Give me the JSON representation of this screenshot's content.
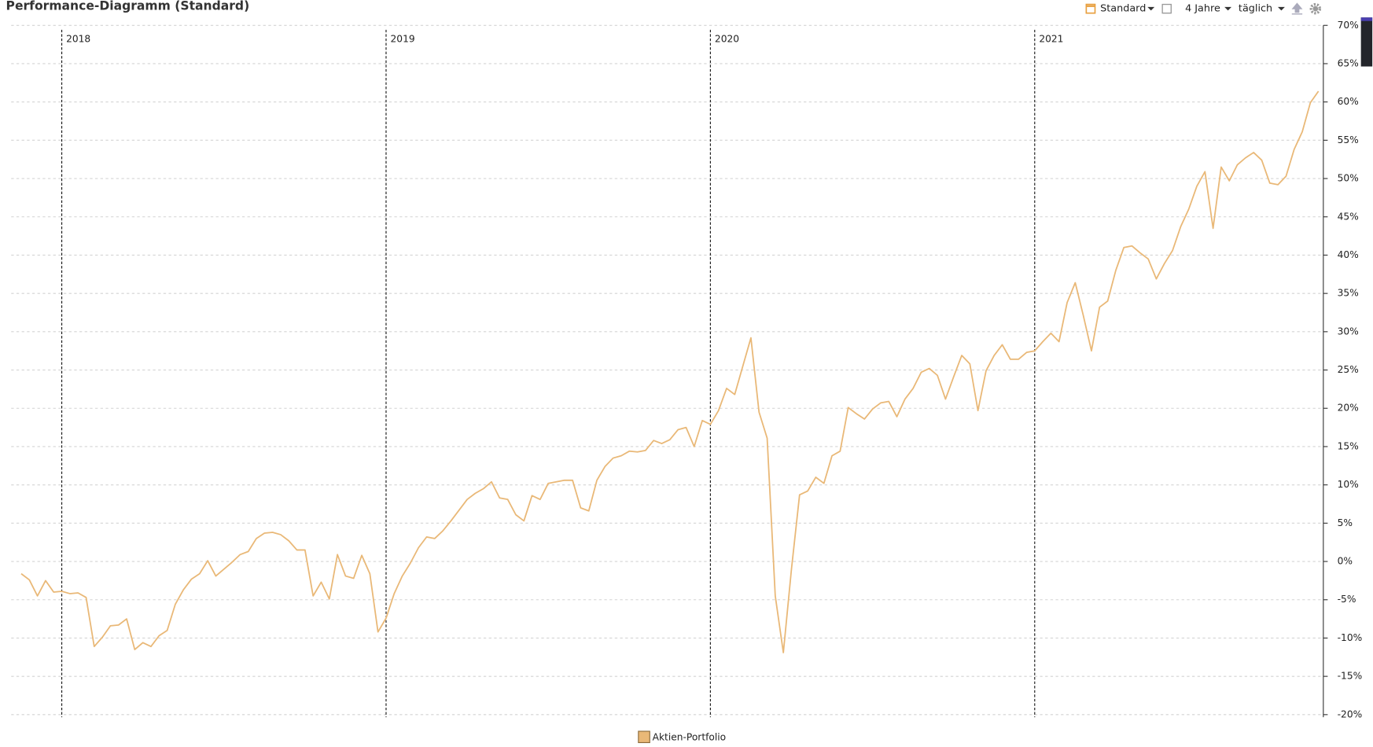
{
  "header": {
    "title": "Performance-Diagramm (Standard)",
    "toolbar": {
      "view": "Standard",
      "range": "4 Jahre",
      "interval": "täglich"
    }
  },
  "chart_data": {
    "type": "line",
    "x": [
      2017.875,
      2017.9,
      2017.925,
      2017.95,
      2017.975,
      2018,
      2018.025,
      2018.05,
      2018.075,
      2018.1,
      2018.125,
      2018.15,
      2018.175,
      2018.2,
      2018.225,
      2018.25,
      2018.275,
      2018.3,
      2018.325,
      2018.35,
      2018.375,
      2018.4,
      2018.425,
      2018.45,
      2018.475,
      2018.5,
      2018.525,
      2018.55,
      2018.575,
      2018.6,
      2018.625,
      2018.65,
      2018.675,
      2018.7,
      2018.725,
      2018.75,
      2018.775,
      2018.8,
      2018.825,
      2018.85,
      2018.875,
      2018.9,
      2018.925,
      2018.95,
      2018.975,
      2019,
      2019.025,
      2019.05,
      2019.075,
      2019.1,
      2019.125,
      2019.15,
      2019.175,
      2019.2,
      2019.225,
      2019.25,
      2019.275,
      2019.3,
      2019.325,
      2019.35,
      2019.375,
      2019.4,
      2019.425,
      2019.45,
      2019.475,
      2019.5,
      2019.525,
      2019.55,
      2019.575,
      2019.6,
      2019.625,
      2019.65,
      2019.675,
      2019.7,
      2019.725,
      2019.75,
      2019.775,
      2019.8,
      2019.825,
      2019.85,
      2019.875,
      2019.9,
      2019.925,
      2019.95,
      2019.975,
      2020,
      2020.025,
      2020.05,
      2020.075,
      2020.1,
      2020.125,
      2020.15,
      2020.175,
      2020.2,
      2020.225,
      2020.25,
      2020.275,
      2020.3,
      2020.325,
      2020.35,
      2020.375,
      2020.4,
      2020.425,
      2020.45,
      2020.475,
      2020.5,
      2020.525,
      2020.55,
      2020.575,
      2020.6,
      2020.625,
      2020.65,
      2020.675,
      2020.7,
      2020.725,
      2020.75,
      2020.775,
      2020.8,
      2020.825,
      2020.85,
      2020.875,
      2020.9,
      2020.925,
      2020.95,
      2020.975,
      2021,
      2021.025,
      2021.05,
      2021.075,
      2021.1,
      2021.125,
      2021.15,
      2021.175,
      2021.2,
      2021.225,
      2021.25,
      2021.275,
      2021.3,
      2021.325,
      2021.35,
      2021.375,
      2021.4,
      2021.425,
      2021.45,
      2021.475,
      2021.5,
      2021.525,
      2021.55,
      2021.575,
      2021.6,
      2021.625,
      2021.65,
      2021.675,
      2021.7,
      2021.725,
      2021.75,
      2021.775,
      2021.8,
      2021.825,
      2021.85,
      2021.875
    ],
    "series": [
      {
        "name": "Aktien-Portfolio",
        "color": "#e9b877",
        "values": [
          -1.6,
          -2.4,
          -4.5,
          -2.5,
          -4.0,
          -3.9,
          -4.2,
          -4.1,
          -4.7,
          -11.1,
          -9.9,
          -8.4,
          -8.3,
          -7.5,
          -11.5,
          -10.6,
          -11.1,
          -9.7,
          -9.0,
          -5.6,
          -3.7,
          -2.3,
          -1.6,
          0.1,
          -1.9,
          -1.0,
          -0.1,
          0.9,
          1.3,
          3.0,
          3.7,
          3.8,
          3.5,
          2.7,
          1.5,
          1.5,
          -4.5,
          -2.7,
          -4.9,
          0.9,
          -1.9,
          -2.2,
          0.8,
          -1.6,
          -9.2,
          -7.4,
          -4.2,
          -1.9,
          -0.2,
          1.8,
          3.2,
          3.0,
          4.0,
          5.3,
          6.7,
          8.1,
          8.9,
          9.5,
          10.4,
          8.3,
          8.1,
          6.1,
          5.3,
          8.6,
          8.1,
          10.2,
          10.4,
          10.6,
          10.6,
          7.0,
          6.6,
          10.6,
          12.4,
          13.5,
          13.8,
          14.4,
          14.3,
          14.5,
          15.8,
          15.4,
          15.9,
          17.2,
          17.5,
          15.0,
          18.4,
          17.9,
          19.7,
          22.6,
          21.8,
          25.5,
          29.2,
          19.5,
          16.1,
          -4.5,
          -11.9,
          -1.0,
          8.7,
          9.2,
          11.0,
          10.2,
          13.8,
          14.4,
          20.1,
          19.3,
          18.6,
          19.9,
          20.7,
          20.9,
          18.9,
          21.2,
          22.6,
          24.7,
          25.2,
          24.3,
          21.2,
          24.1,
          26.9,
          25.8,
          19.7,
          24.9,
          26.9,
          28.3,
          26.4,
          26.4,
          27.3,
          27.5,
          28.7,
          29.8,
          28.7,
          33.8,
          36.4,
          32.1,
          27.5,
          33.2,
          34.0,
          38.0,
          41.0,
          41.2,
          40.3,
          39.5,
          36.9,
          38.9,
          40.6,
          43.7,
          46.0,
          49.0,
          50.9,
          43.5,
          51.5,
          49.7,
          51.8,
          52.7,
          53.4,
          52.4,
          49.4,
          49.2,
          50.3,
          53.8,
          56.1,
          59.9,
          61.4
        ]
      }
    ],
    "xlim": [
      2017.844,
      2021.89
    ],
    "xticks": [
      2018,
      2019,
      2020,
      2021
    ],
    "ylim": [
      -20,
      70
    ],
    "yticks": [
      {
        "value": -20,
        "label": "-20%"
      },
      {
        "value": -15,
        "label": "-15%"
      },
      {
        "value": -10,
        "label": "-10%"
      },
      {
        "value": -5,
        "label": "-5%"
      },
      {
        "value": 0,
        "label": "0%"
      },
      {
        "value": 5,
        "label": "5%"
      },
      {
        "value": 10,
        "label": "10%"
      },
      {
        "value": 15,
        "label": "15%"
      },
      {
        "value": 20,
        "label": "20%"
      },
      {
        "value": 25,
        "label": "25%"
      },
      {
        "value": 30,
        "label": "30%"
      },
      {
        "value": 35,
        "label": "35%"
      },
      {
        "value": 40,
        "label": "40%"
      },
      {
        "value": 45,
        "label": "45%"
      },
      {
        "value": 50,
        "label": "50%"
      },
      {
        "value": 55,
        "label": "55%"
      },
      {
        "value": 60,
        "label": "60%"
      },
      {
        "value": 65,
        "label": "65%"
      },
      {
        "value": 70,
        "label": "70%"
      }
    ],
    "grid": true,
    "legend": "bottom"
  }
}
